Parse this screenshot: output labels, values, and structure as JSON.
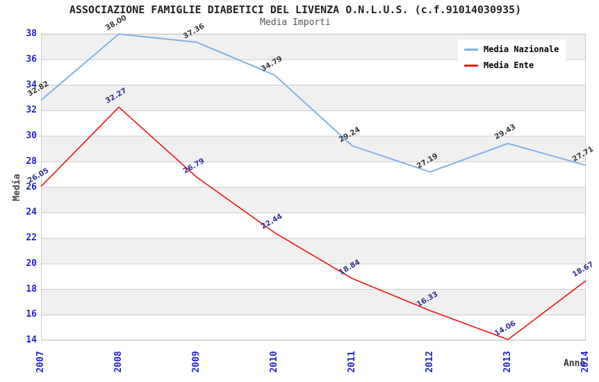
{
  "title": "ASSOCIAZIONE FAMIGLIE DIABETICI DEL LIVENZA O.N.L.U.S. (c.f.91014030935)",
  "subtitle": "Media Importi",
  "chart_data": {
    "type": "line",
    "x": [
      2007,
      2008,
      2009,
      2010,
      2011,
      2012,
      2013,
      2014
    ],
    "xlabel": "Anno",
    "ylabel": "Media",
    "ylim": [
      14,
      38
    ],
    "ytick_step": 2,
    "grid": true,
    "alternating_bands": true,
    "legend_position": "top-right",
    "series": [
      {
        "name": "Media Nazionale",
        "color": "#7eb2e4",
        "label_color": "#3a3a3a",
        "values": [
          32.82,
          38.0,
          37.36,
          34.79,
          29.24,
          27.19,
          29.43,
          27.71
        ]
      },
      {
        "name": "Media Ente",
        "color": "#ee1111",
        "label_color": "#333399",
        "values": [
          26.05,
          32.27,
          26.79,
          22.44,
          18.84,
          16.33,
          14.06,
          18.67
        ]
      }
    ]
  },
  "colors": {
    "background": "#ffffff",
    "band_fill": "#f0f0f0",
    "grid_line": "#cccccc",
    "plot_border": "#cccccc",
    "tick_label": "#1f1fd0",
    "axis_title": "#444444",
    "title": "#222222",
    "subtitle": "#555555",
    "legend_text": "#000000"
  }
}
